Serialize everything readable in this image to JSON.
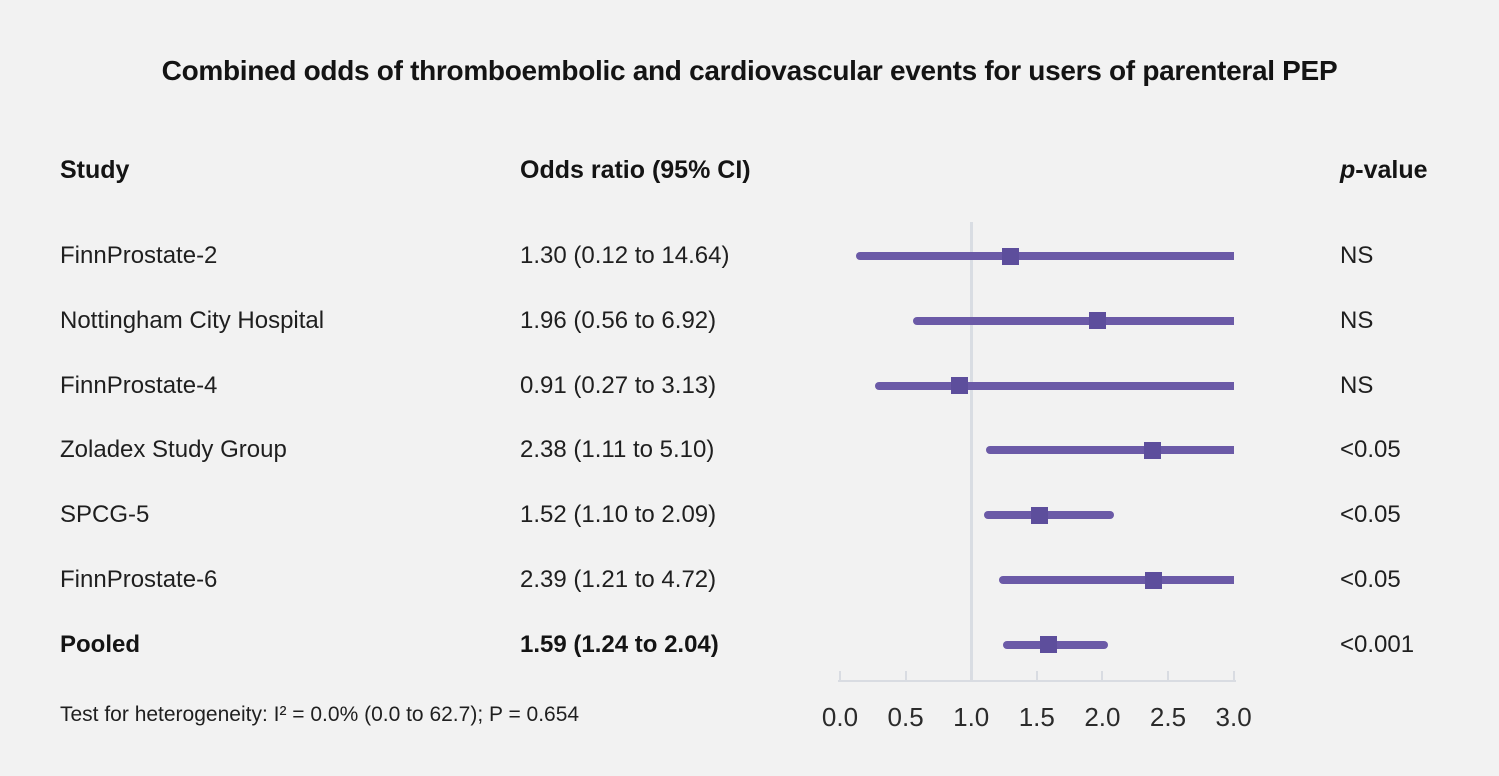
{
  "title": "Combined odds of thromboembolic and cardiovascular events for users of parenteral PEP",
  "headers": {
    "study": "Study",
    "odds_ratio": "Odds ratio (95% CI)",
    "pvalue_italic": "p",
    "pvalue_rest": "-value"
  },
  "footnote": "Test for heterogeneity: I² = 0.0% (0.0 to 62.7); P = 0.654",
  "colors": {
    "background": "#f2f2f2",
    "ci_line": "#6b5aa7",
    "marker": "#5d4e9c",
    "reference_line": "#d9dde3",
    "axis": "#d9dce2",
    "text": "#1a1a1a"
  },
  "chart_data": {
    "type": "scatter",
    "subtype": "forest-plot",
    "title": "Combined odds of thromboembolic and cardiovascular events for users of parenteral PEP",
    "xlabel": "Odds ratio",
    "axis": {
      "min": 0.0,
      "max": 3.0,
      "ticks": [
        "0.0",
        "0.5",
        "1.0",
        "1.5",
        "2.0",
        "2.5",
        "3.0"
      ],
      "reference_line": 1.0
    },
    "rows": [
      {
        "study": "FinnProstate-2",
        "or": 1.3,
        "ci_low": 0.12,
        "ci_high": 14.64,
        "or_label": "1.30 (0.12 to 14.64)",
        "p_value": "NS",
        "pooled": false
      },
      {
        "study": "Nottingham City Hospital",
        "or": 1.96,
        "ci_low": 0.56,
        "ci_high": 6.92,
        "or_label": "1.96 (0.56 to 6.92)",
        "p_value": "NS",
        "pooled": false
      },
      {
        "study": "FinnProstate-4",
        "or": 0.91,
        "ci_low": 0.27,
        "ci_high": 3.13,
        "or_label": "0.91 (0.27 to 3.13)",
        "p_value": "NS",
        "pooled": false
      },
      {
        "study": "Zoladex Study Group",
        "or": 2.38,
        "ci_low": 1.11,
        "ci_high": 5.1,
        "or_label": "2.38 (1.11 to 5.10)",
        "p_value": "<0.05",
        "pooled": false
      },
      {
        "study": "SPCG-5",
        "or": 1.52,
        "ci_low": 1.1,
        "ci_high": 2.09,
        "or_label": "1.52 (1.10 to 2.09)",
        "p_value": "<0.05",
        "pooled": false
      },
      {
        "study": "FinnProstate-6",
        "or": 2.39,
        "ci_low": 1.21,
        "ci_high": 4.72,
        "or_label": "2.39 (1.21 to 4.72)",
        "p_value": "<0.05",
        "pooled": false
      },
      {
        "study": "Pooled",
        "or": 1.59,
        "ci_low": 1.24,
        "ci_high": 2.04,
        "or_label": "1.59 (1.24 to 2.04)",
        "p_value": "<0.001",
        "pooled": true
      }
    ]
  }
}
